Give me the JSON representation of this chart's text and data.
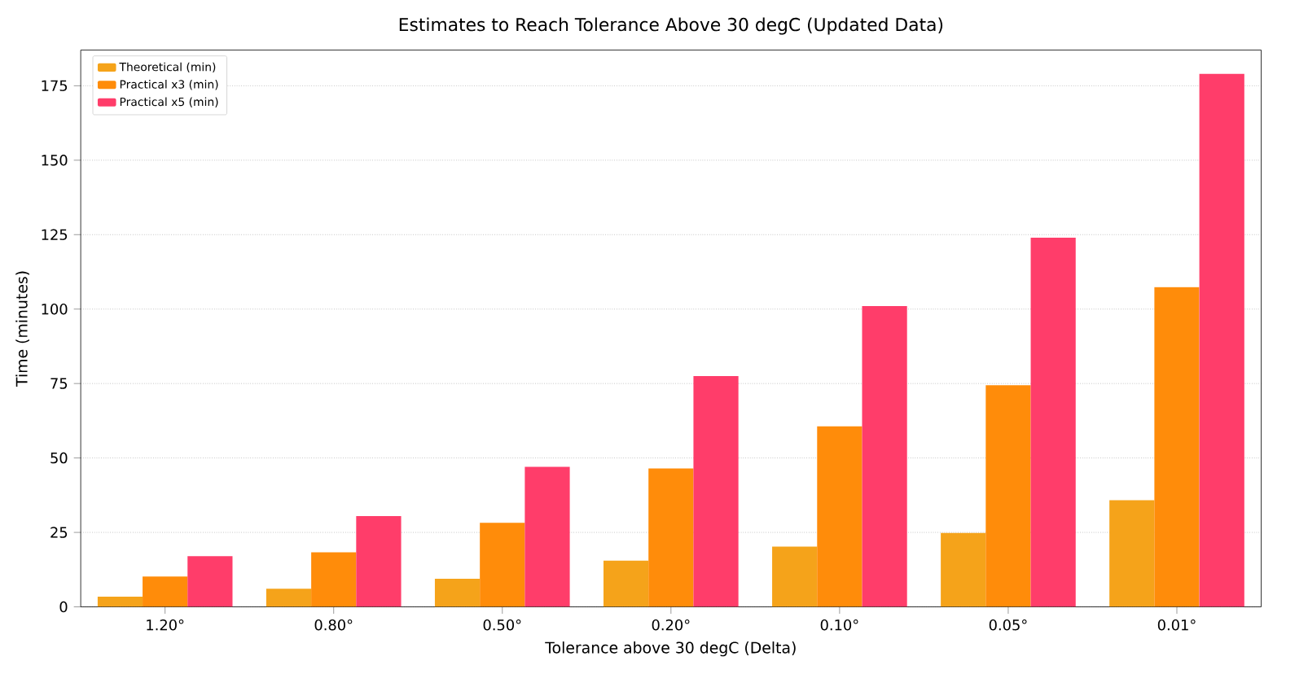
{
  "chart_data": {
    "type": "bar",
    "title": "Estimates to Reach Tolerance Above 30 degC (Updated Data)",
    "xlabel": "Tolerance above 30 degC (Delta)",
    "ylabel": "Time (minutes)",
    "categories": [
      "1.20°",
      "0.80°",
      "0.50°",
      "0.20°",
      "0.10°",
      "0.05°",
      "0.01°"
    ],
    "series": [
      {
        "name": "Theoretical (min)",
        "color": "#f5a31a",
        "values": [
          3.4,
          6.1,
          9.4,
          15.5,
          20.2,
          24.8,
          35.8
        ]
      },
      {
        "name": "Practical x3 (min)",
        "color": "#ff8c0a",
        "values": [
          10.2,
          18.3,
          28.2,
          46.5,
          60.6,
          74.4,
          107.4
        ]
      },
      {
        "name": "Practical x5 (min)",
        "color": "#ff3d6a",
        "values": [
          17,
          30.5,
          47,
          77.5,
          101,
          124,
          179
        ]
      }
    ],
    "ylim": [
      0,
      187
    ],
    "yticks": [
      0,
      25,
      50,
      75,
      100,
      125,
      150,
      175
    ],
    "grid": "y",
    "legend": "top left"
  }
}
